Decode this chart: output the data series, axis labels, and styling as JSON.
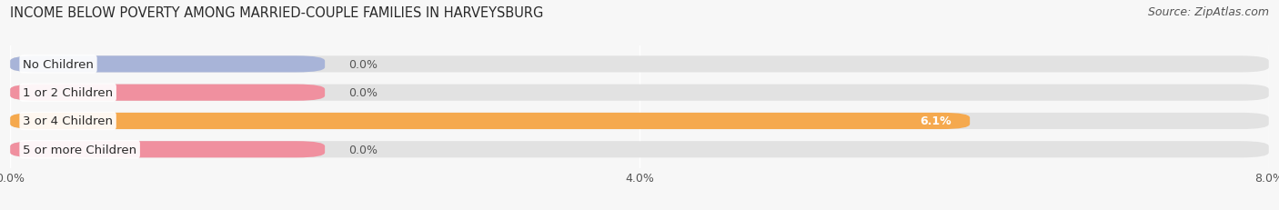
{
  "title": "INCOME BELOW POVERTY AMONG MARRIED-COUPLE FAMILIES IN HARVEYSBURG",
  "source": "Source: ZipAtlas.com",
  "categories": [
    "No Children",
    "1 or 2 Children",
    "3 or 4 Children",
    "5 or more Children"
  ],
  "values": [
    0.0,
    0.0,
    6.1,
    0.0
  ],
  "bar_colors": [
    "#a8b4d8",
    "#f0909f",
    "#f5a94e",
    "#f0909f"
  ],
  "x_ticks": [
    0.0,
    4.0,
    8.0
  ],
  "x_tick_labels": [
    "0.0%",
    "4.0%",
    "8.0%"
  ],
  "x_max": 8.0,
  "bar_height": 0.58,
  "background_color": "#f7f7f7",
  "bar_bg_color": "#e2e2e2",
  "title_fontsize": 10.5,
  "source_fontsize": 9,
  "tick_fontsize": 9,
  "label_fontsize": 9.5,
  "value_fontsize": 9
}
